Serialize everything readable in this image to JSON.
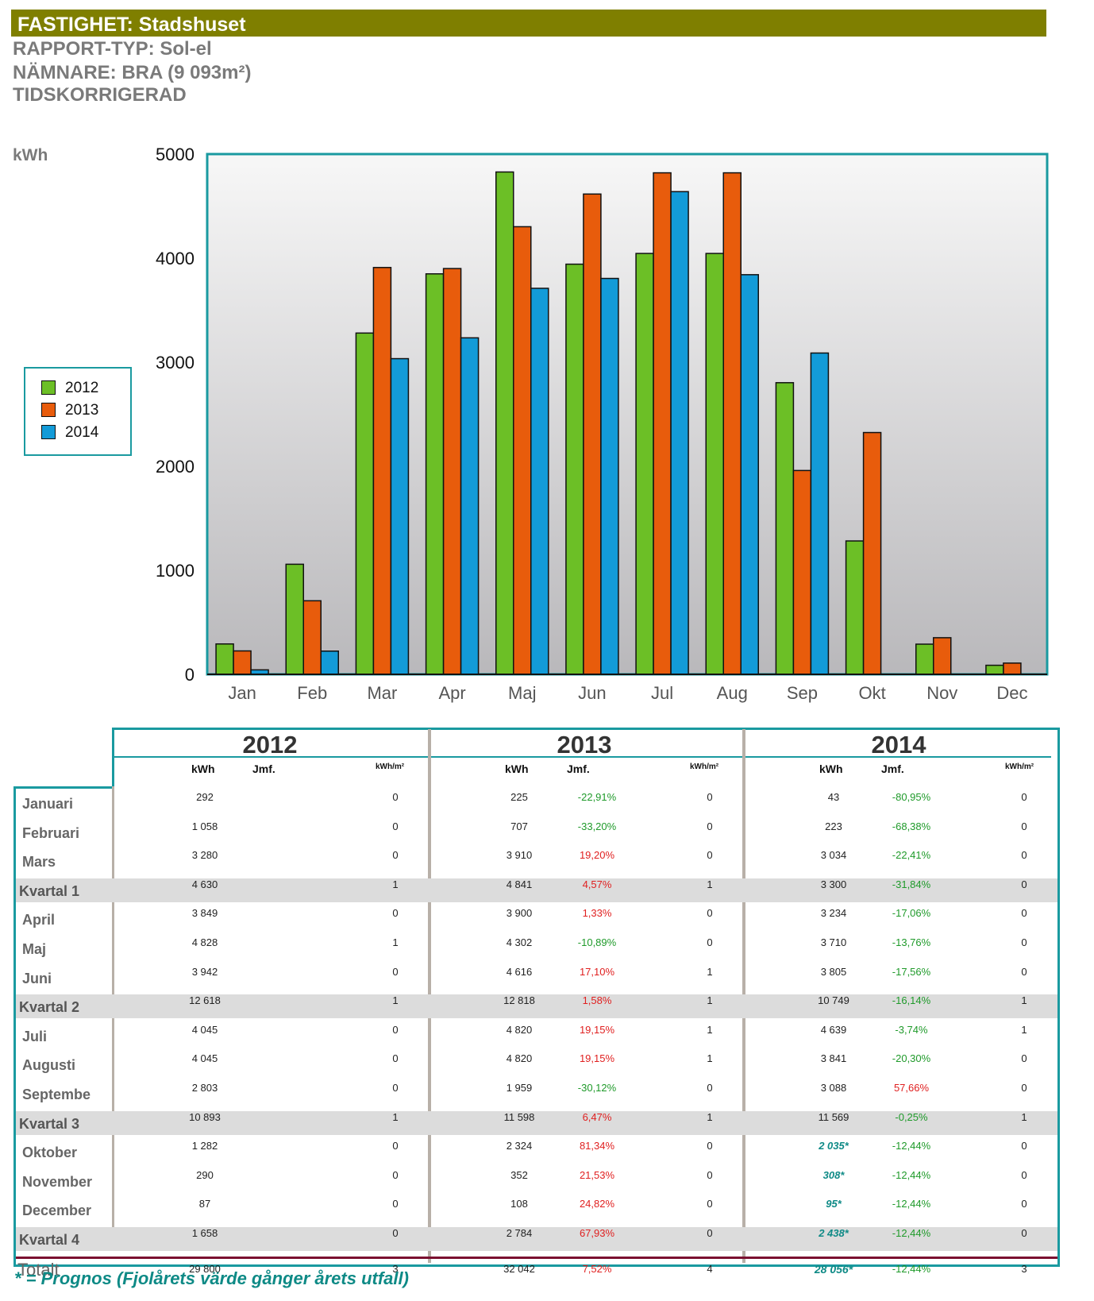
{
  "header": {
    "title": "FASTIGHET: Stadshuset",
    "report_type": "RAPPORT-TYP: Sol-el",
    "denominator": "NÄMNARE: BRA (9 093m²)",
    "correction": "TIDSKORRIGERAD"
  },
  "colors": {
    "y2012": "#6cbf26",
    "y2013": "#e85c0c",
    "y2014": "#139bd8",
    "accent": "#1a9aa0",
    "title_bg": "#7f7f00"
  },
  "chart_data": {
    "type": "bar",
    "ylabel": "kWh",
    "ylim": [
      0,
      5000
    ],
    "yticks": [
      "5000",
      "4000",
      "3000",
      "2000",
      "1000",
      "0"
    ],
    "categories": [
      "Jan",
      "Feb",
      "Mar",
      "Apr",
      "Maj",
      "Jun",
      "Jul",
      "Aug",
      "Sep",
      "Okt",
      "Nov",
      "Dec"
    ],
    "series": [
      {
        "name": "2012",
        "values": [
          292,
          1058,
          3280,
          3849,
          4828,
          3942,
          4045,
          4045,
          2803,
          1282,
          290,
          87
        ]
      },
      {
        "name": "2013",
        "values": [
          225,
          707,
          3910,
          3900,
          4302,
          4616,
          4820,
          4820,
          1959,
          2324,
          352,
          108
        ]
      },
      {
        "name": "2014",
        "values": [
          43,
          223,
          3034,
          3234,
          3710,
          3805,
          4639,
          3841,
          3088,
          null,
          null,
          null
        ]
      }
    ],
    "legend": [
      "2012",
      "2013",
      "2014"
    ]
  },
  "table": {
    "years": [
      "2012",
      "2013",
      "2014"
    ],
    "col_kwh": "kWh",
    "col_jmf": "Jmf.",
    "col_kwhm2": "kWh/m²",
    "rows": [
      {
        "label": "Januari",
        "kv": false,
        "v12": "292",
        "m12": "0",
        "v13": "225",
        "j13": "-22,91%",
        "m13": "0",
        "v14": "43",
        "j14": "-80,95%",
        "m14": "0",
        "p14": false
      },
      {
        "label": "Februari",
        "kv": false,
        "v12": "1 058",
        "m12": "0",
        "v13": "707",
        "j13": "-33,20%",
        "m13": "0",
        "v14": "223",
        "j14": "-68,38%",
        "m14": "0",
        "p14": false
      },
      {
        "label": "Mars",
        "kv": false,
        "v12": "3 280",
        "m12": "0",
        "v13": "3 910",
        "j13": "19,20%",
        "m13": "0",
        "v14": "3 034",
        "j14": "-22,41%",
        "m14": "0",
        "p14": false
      },
      {
        "label": "Kvartal 1",
        "kv": true,
        "v12": "4 630",
        "m12": "1",
        "v13": "4 841",
        "j13": "4,57%",
        "m13": "1",
        "v14": "3 300",
        "j14": "-31,84%",
        "m14": "0",
        "p14": false
      },
      {
        "label": "April",
        "kv": false,
        "v12": "3 849",
        "m12": "0",
        "v13": "3 900",
        "j13": "1,33%",
        "m13": "0",
        "v14": "3 234",
        "j14": "-17,06%",
        "m14": "0",
        "p14": false
      },
      {
        "label": "Maj",
        "kv": false,
        "v12": "4 828",
        "m12": "1",
        "v13": "4 302",
        "j13": "-10,89%",
        "m13": "0",
        "v14": "3 710",
        "j14": "-13,76%",
        "m14": "0",
        "p14": false
      },
      {
        "label": "Juni",
        "kv": false,
        "v12": "3 942",
        "m12": "0",
        "v13": "4 616",
        "j13": "17,10%",
        "m13": "1",
        "v14": "3 805",
        "j14": "-17,56%",
        "m14": "0",
        "p14": false
      },
      {
        "label": "Kvartal 2",
        "kv": true,
        "v12": "12 618",
        "m12": "1",
        "v13": "12 818",
        "j13": "1,58%",
        "m13": "1",
        "v14": "10 749",
        "j14": "-16,14%",
        "m14": "1",
        "p14": false
      },
      {
        "label": "Juli",
        "kv": false,
        "v12": "4 045",
        "m12": "0",
        "v13": "4 820",
        "j13": "19,15%",
        "m13": "1",
        "v14": "4 639",
        "j14": "-3,74%",
        "m14": "1",
        "p14": false
      },
      {
        "label": "Augusti",
        "kv": false,
        "v12": "4 045",
        "m12": "0",
        "v13": "4 820",
        "j13": "19,15%",
        "m13": "1",
        "v14": "3 841",
        "j14": "-20,30%",
        "m14": "0",
        "p14": false
      },
      {
        "label": "Septembe",
        "kv": false,
        "v12": "2 803",
        "m12": "0",
        "v13": "1 959",
        "j13": "-30,12%",
        "m13": "0",
        "v14": "3 088",
        "j14": "57,66%",
        "m14": "0",
        "p14": false
      },
      {
        "label": "Kvartal 3",
        "kv": true,
        "v12": "10 893",
        "m12": "1",
        "v13": "11 598",
        "j13": "6,47%",
        "m13": "1",
        "v14": "11 569",
        "j14": "-0,25%",
        "m14": "1",
        "p14": false
      },
      {
        "label": "Oktober",
        "kv": false,
        "v12": "1 282",
        "m12": "0",
        "v13": "2 324",
        "j13": "81,34%",
        "m13": "0",
        "v14": "2 035*",
        "j14": "-12,44%",
        "m14": "0",
        "p14": true
      },
      {
        "label": "November",
        "kv": false,
        "v12": "290",
        "m12": "0",
        "v13": "352",
        "j13": "21,53%",
        "m13": "0",
        "v14": "308*",
        "j14": "-12,44%",
        "m14": "0",
        "p14": true
      },
      {
        "label": "December",
        "kv": false,
        "v12": "87",
        "m12": "0",
        "v13": "108",
        "j13": "24,82%",
        "m13": "0",
        "v14": "95*",
        "j14": "-12,44%",
        "m14": "0",
        "p14": true
      },
      {
        "label": "Kvartal 4",
        "kv": true,
        "v12": "1 658",
        "m12": "0",
        "v13": "2 784",
        "j13": "67,93%",
        "m13": "0",
        "v14": "2 438*",
        "j14": "-12,44%",
        "m14": "0",
        "p14": true
      }
    ],
    "total": {
      "label": "Totalt",
      "v12": "29 800",
      "m12": "3",
      "v13": "32 042",
      "j13": "7,52%",
      "m13": "4",
      "v14": "28 056*",
      "j14": "-12,44%",
      "m14": "3"
    }
  },
  "footnote": "* = Prognos (Fjolårets värde gånger årets utfall)"
}
